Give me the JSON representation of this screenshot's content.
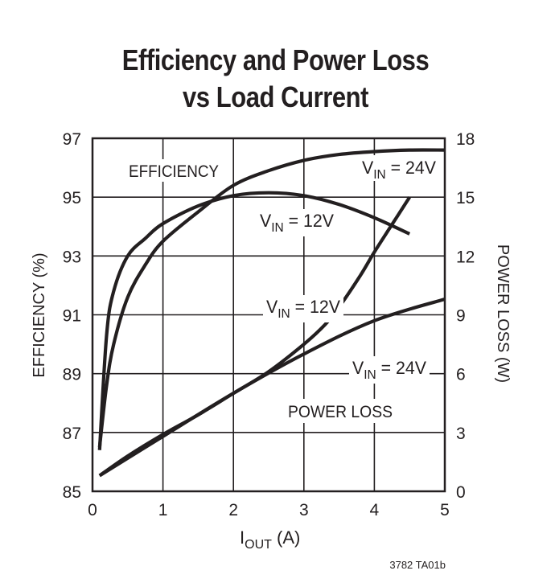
{
  "chart_data": {
    "type": "line",
    "title": "Efficiency and Power Loss vs Load Current",
    "title_lines": [
      "Efficiency and Power Loss",
      "vs Load Current"
    ],
    "xlabel": "I_OUT (A)",
    "ylabel_left": "EFFICIENCY (%)",
    "ylabel_right": "POWER LOSS (W)",
    "xlim": [
      0,
      5
    ],
    "ylim_left": [
      85,
      97
    ],
    "ylim_right": [
      0,
      18
    ],
    "x_ticks": [
      "0",
      "1",
      "2",
      "3",
      "4",
      "5"
    ],
    "y_ticks_left": [
      "85",
      "87",
      "89",
      "91",
      "93",
      "95",
      "97"
    ],
    "y_ticks_right": [
      "0",
      "3",
      "6",
      "9",
      "12",
      "15",
      "18"
    ],
    "grid": true,
    "annotations": [
      "EFFICIENCY",
      "POWER LOSS"
    ],
    "series": [
      {
        "name": "Efficiency VIN = 12V",
        "axis": "left",
        "x": [
          0.1,
          0.2,
          0.3,
          0.5,
          0.75,
          1.0,
          1.5,
          2.0,
          2.5,
          3.0,
          3.5,
          4.0,
          4.5
        ],
        "y": [
          86.4,
          90.3,
          91.8,
          93.0,
          93.6,
          94.1,
          94.7,
          95.05,
          95.15,
          95.05,
          94.75,
          94.3,
          93.75
        ]
      },
      {
        "name": "Efficiency VIN = 24V",
        "axis": "left",
        "x": [
          0.1,
          0.2,
          0.3,
          0.5,
          0.75,
          1.0,
          1.5,
          2.0,
          2.5,
          3.0,
          3.5,
          4.0,
          4.5,
          5.0
        ],
        "y": [
          86.5,
          88.6,
          90.0,
          91.6,
          92.7,
          93.5,
          94.5,
          95.4,
          95.9,
          96.25,
          96.45,
          96.55,
          96.6,
          96.6
        ]
      },
      {
        "name": "Power Loss VIN = 12V",
        "axis": "right",
        "x": [
          0.1,
          0.5,
          1.0,
          1.5,
          2.0,
          2.5,
          3.0,
          3.3,
          3.5,
          3.8,
          4.0,
          4.25,
          4.5
        ],
        "y": [
          0.8,
          1.8,
          2.9,
          3.9,
          5.0,
          6.1,
          7.5,
          8.5,
          9.4,
          11.0,
          12.2,
          13.6,
          15.0
        ]
      },
      {
        "name": "Power Loss VIN = 24V",
        "axis": "right",
        "x": [
          0.1,
          1.0,
          2.0,
          3.0,
          4.0,
          5.0
        ],
        "y": [
          0.8,
          2.8,
          5.0,
          7.0,
          8.7,
          9.8
        ]
      }
    ],
    "series_labels": {
      "eff12": "VIN = 12V",
      "eff24": "VIN = 24V",
      "pl12": "VIN = 12V",
      "pl24": "VIN = 24V"
    },
    "figure_code": "3782 TA01b"
  }
}
